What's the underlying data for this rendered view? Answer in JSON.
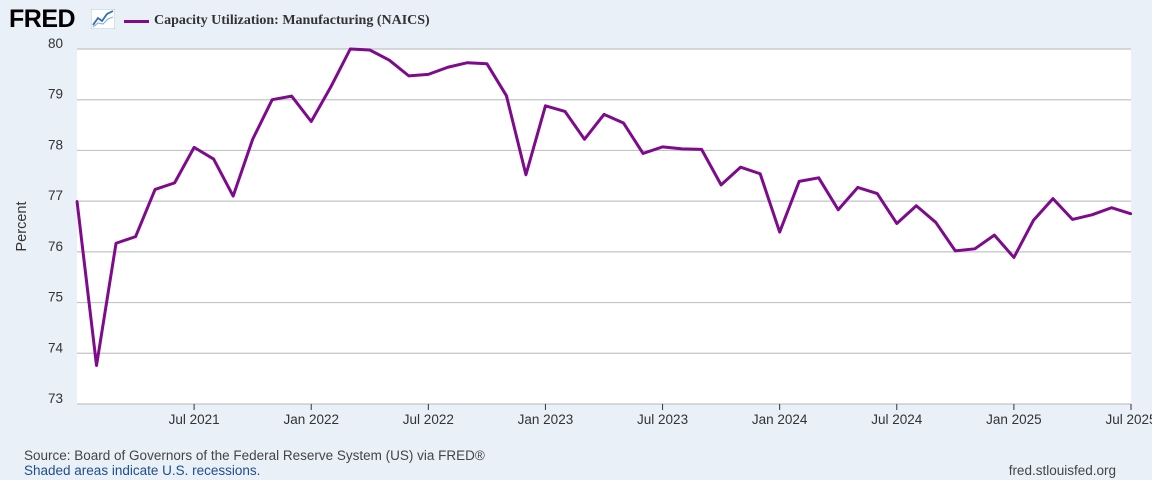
{
  "header": {
    "logo_text": "FRED",
    "logo_icon": "trend-line-icon"
  },
  "footer": {
    "source": "Source: Board of Governors of the Federal Reserve System (US) via FRED®",
    "note": "Shaded areas indicate U.S. recessions.",
    "url": "fred.stlouisfed.org"
  },
  "colors": {
    "series": "#7e0a8c",
    "background": "#e9f0f8",
    "plot_background": "#ffffff",
    "grid": "#c0c4c8"
  },
  "chart_data": {
    "type": "line",
    "title": "",
    "xlabel": "",
    "ylabel": "Percent",
    "ylim": [
      73,
      80
    ],
    "xlim": [
      "2021-01",
      "2025-07"
    ],
    "grid": true,
    "legend_position": "top-left",
    "yticks": [
      73,
      74,
      75,
      76,
      77,
      78,
      79,
      80
    ],
    "xticks": [
      {
        "x": "2021-07",
        "label": "Jul 2021"
      },
      {
        "x": "2022-01",
        "label": "Jan 2022"
      },
      {
        "x": "2022-07",
        "label": "Jul 2022"
      },
      {
        "x": "2023-01",
        "label": "Jan 2023"
      },
      {
        "x": "2023-07",
        "label": "Jul 2023"
      },
      {
        "x": "2024-01",
        "label": "Jan 2024"
      },
      {
        "x": "2024-07",
        "label": "Jul 2024"
      },
      {
        "x": "2025-01",
        "label": "Jan 2025"
      },
      {
        "x": "2025-07",
        "label": "Jul 2025"
      }
    ],
    "series": [
      {
        "name": "Capacity Utilization: Manufacturing (NAICS)",
        "color": "#7e0a8c",
        "x": [
          "2021-01",
          "2021-02",
          "2021-03",
          "2021-04",
          "2021-05",
          "2021-06",
          "2021-07",
          "2021-08",
          "2021-09",
          "2021-10",
          "2021-11",
          "2021-12",
          "2022-01",
          "2022-02",
          "2022-03",
          "2022-04",
          "2022-05",
          "2022-06",
          "2022-07",
          "2022-08",
          "2022-09",
          "2022-10",
          "2022-11",
          "2022-12",
          "2023-01",
          "2023-02",
          "2023-03",
          "2023-04",
          "2023-05",
          "2023-06",
          "2023-07",
          "2023-08",
          "2023-09",
          "2023-10",
          "2023-11",
          "2023-12",
          "2024-01",
          "2024-02",
          "2024-03",
          "2024-04",
          "2024-05",
          "2024-06",
          "2024-07",
          "2024-08",
          "2024-09",
          "2024-10",
          "2024-11",
          "2024-12",
          "2025-01",
          "2025-02",
          "2025-03",
          "2025-04",
          "2025-05",
          "2025-06",
          "2025-07"
        ],
        "values": [
          77.0,
          73.76,
          76.17,
          76.3,
          77.23,
          77.36,
          78.06,
          77.83,
          77.1,
          78.22,
          79.0,
          79.07,
          78.57,
          79.25,
          80.0,
          79.98,
          79.78,
          79.47,
          79.5,
          79.64,
          79.73,
          79.71,
          79.08,
          77.52,
          78.88,
          78.77,
          78.22,
          78.71,
          78.54,
          77.94,
          78.07,
          78.03,
          78.02,
          77.32,
          77.67,
          77.54,
          76.39,
          77.39,
          77.46,
          76.83,
          77.27,
          77.15,
          76.56,
          76.91,
          76.58,
          76.02,
          76.06,
          76.33,
          75.89,
          76.62,
          77.05,
          76.64,
          76.73,
          76.87,
          76.75
        ]
      }
    ]
  }
}
